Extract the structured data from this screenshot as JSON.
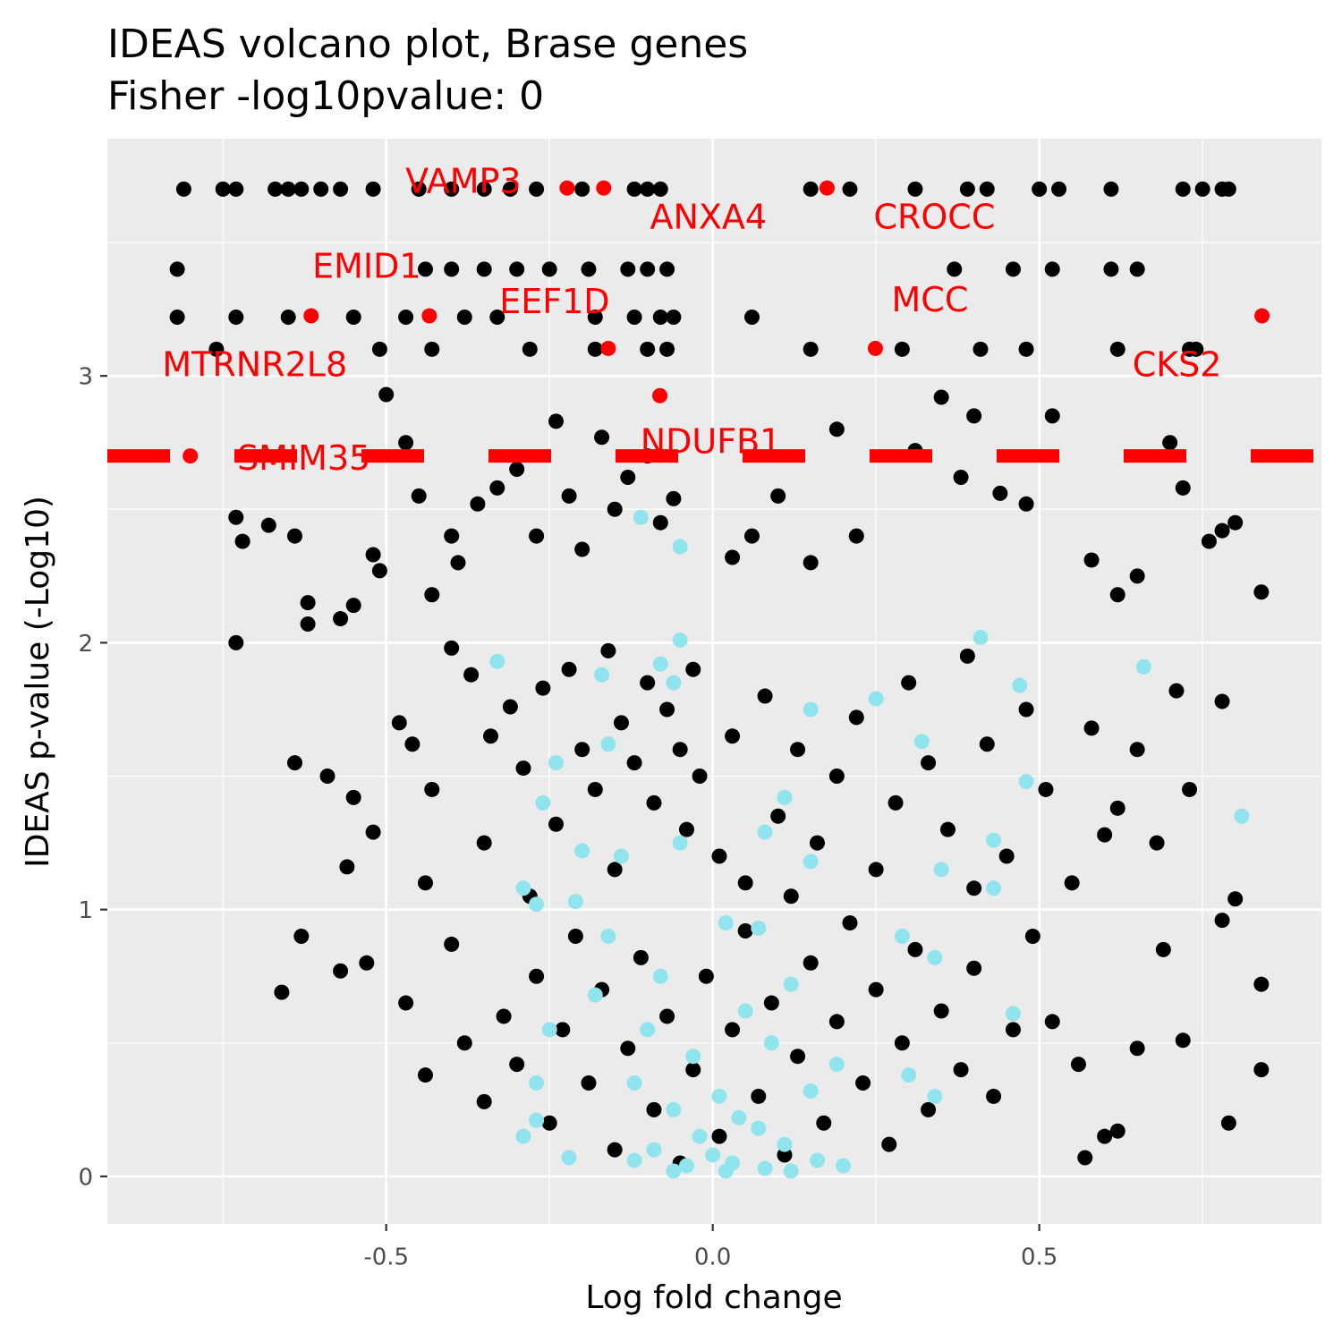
{
  "chart_data": {
    "type": "scatter",
    "title": "IDEAS volcano plot, Brase genes",
    "subtitle": "Fisher -log10pvalue: 0",
    "x_label": "Log fold change",
    "y_label": "IDEAS p-value (-Log10)",
    "xlim": [
      -0.927,
      0.932
    ],
    "ylim": [
      -0.178,
      3.889
    ],
    "xticks": [
      {
        "value": -0.5,
        "label": "-0.5"
      },
      {
        "value": 0,
        "label": "0.0"
      },
      {
        "value": 0.5,
        "label": "0.5"
      }
    ],
    "yticks": [
      0,
      1,
      2,
      3
    ],
    "x_minor_ticks": [
      -0.75,
      -0.25,
      0.25,
      0.75
    ],
    "y_minor_ticks": [
      0.5,
      1.5,
      2.5,
      3.5
    ],
    "grid": true,
    "background": "#ebebeb",
    "hline": {
      "value": 2.7,
      "color": "#ff0000"
    },
    "series": [
      {
        "color": "#000000",
        "x": [
          -0.81,
          -0.75,
          -0.73,
          -0.67,
          -0.65,
          -0.63,
          -0.6,
          -0.57,
          -0.52,
          -0.45,
          -0.4,
          -0.35,
          -0.31,
          -0.27,
          -0.2,
          -0.12,
          -0.1,
          -0.08,
          0.15,
          0.21,
          0.31,
          0.39,
          0.42,
          0.5,
          0.53,
          0.61,
          0.72,
          0.75,
          0.78,
          0.79,
          -0.82,
          -0.44,
          -0.4,
          -0.35,
          -0.3,
          -0.25,
          -0.19,
          -0.13,
          -0.1,
          -0.07,
          0.37,
          0.46,
          0.52,
          0.61,
          0.65,
          -0.82,
          -0.73,
          -0.65,
          -0.55,
          -0.47,
          -0.38,
          -0.33,
          -0.18,
          -0.12,
          -0.08,
          -0.06,
          0.06,
          -0.76,
          -0.51,
          -0.43,
          -0.28,
          -0.18,
          -0.1,
          -0.07,
          0.15,
          0.29,
          0.41,
          0.48,
          0.62,
          0.73,
          0.74,
          -0.73,
          -0.72,
          -0.68,
          -0.64,
          -0.62,
          -0.62,
          -0.57,
          -0.55,
          -0.52,
          -0.51,
          -0.5,
          -0.47,
          -0.45,
          -0.43,
          -0.4,
          -0.39,
          -0.36,
          -0.33,
          -0.3,
          -0.27,
          -0.24,
          -0.22,
          -0.2,
          -0.17,
          -0.15,
          -0.13,
          -0.1,
          -0.08,
          -0.06,
          0.03,
          0.06,
          0.1,
          0.15,
          0.19,
          0.22,
          0.31,
          0.35,
          0.38,
          0.4,
          0.44,
          0.48,
          0.52,
          0.58,
          0.62,
          0.65,
          0.76,
          0.78,
          0.8,
          0.84,
          0.7,
          0.72,
          -0.73,
          -0.64,
          -0.59,
          -0.55,
          -0.52,
          -0.48,
          -0.46,
          -0.43,
          -0.4,
          -0.37,
          -0.34,
          -0.31,
          -0.29,
          -0.26,
          -0.24,
          -0.22,
          -0.2,
          -0.18,
          -0.16,
          -0.14,
          -0.12,
          -0.1,
          -0.09,
          -0.07,
          -0.05,
          -0.04,
          -0.03,
          -0.02,
          0.01,
          0.03,
          0.05,
          0.08,
          0.1,
          0.13,
          0.16,
          0.19,
          0.22,
          0.25,
          0.28,
          0.3,
          0.33,
          0.36,
          0.39,
          0.42,
          0.45,
          0.48,
          0.51,
          0.55,
          0.58,
          0.62,
          0.65,
          0.68,
          0.71,
          0.73,
          0.78,
          -0.56,
          -0.44,
          -0.35,
          -0.28,
          -0.15,
          0.12,
          0.4,
          0.6,
          -0.66,
          -0.63,
          -0.57,
          -0.53,
          -0.47,
          -0.44,
          -0.4,
          -0.38,
          -0.35,
          -0.32,
          -0.3,
          -0.27,
          -0.25,
          -0.23,
          -0.21,
          -0.19,
          -0.17,
          -0.15,
          -0.13,
          -0.11,
          -0.09,
          -0.07,
          -0.05,
          -0.03,
          -0.01,
          0.01,
          0.03,
          0.05,
          0.07,
          0.09,
          0.11,
          0.13,
          0.15,
          0.17,
          0.19,
          0.21,
          0.23,
          0.25,
          0.27,
          0.29,
          0.31,
          0.33,
          0.35,
          0.38,
          0.4,
          0.43,
          0.46,
          0.49,
          0.52,
          0.56,
          0.6,
          0.62,
          0.65,
          0.69,
          0.72,
          0.78,
          0.79,
          0.84,
          0.84,
          0.8,
          0.57
        ],
        "values": [
          3.7,
          3.7,
          3.7,
          3.7,
          3.7,
          3.7,
          3.7,
          3.7,
          3.7,
          3.7,
          3.7,
          3.7,
          3.7,
          3.7,
          3.7,
          3.7,
          3.7,
          3.7,
          3.7,
          3.7,
          3.7,
          3.7,
          3.7,
          3.7,
          3.7,
          3.7,
          3.7,
          3.7,
          3.7,
          3.7,
          3.4,
          3.4,
          3.4,
          3.4,
          3.4,
          3.4,
          3.4,
          3.4,
          3.4,
          3.4,
          3.4,
          3.4,
          3.4,
          3.4,
          3.4,
          3.22,
          3.22,
          3.22,
          3.22,
          3.22,
          3.22,
          3.22,
          3.22,
          3.22,
          3.22,
          3.22,
          3.22,
          3.1,
          3.1,
          3.1,
          3.1,
          3.1,
          3.1,
          3.1,
          3.1,
          3.1,
          3.1,
          3.1,
          3.1,
          3.1,
          3.1,
          2.47,
          2.38,
          2.44,
          2.4,
          2.15,
          2.07,
          2.09,
          2.14,
          2.33,
          2.27,
          2.93,
          2.75,
          2.55,
          2.18,
          2.4,
          2.3,
          2.52,
          2.58,
          2.65,
          2.4,
          2.83,
          2.55,
          2.35,
          2.77,
          2.5,
          2.62,
          2.7,
          2.45,
          2.54,
          2.32,
          2.4,
          2.55,
          2.3,
          2.8,
          2.4,
          2.72,
          2.92,
          2.62,
          2.85,
          2.56,
          2.52,
          2.85,
          2.31,
          2.18,
          2.25,
          2.38,
          2.42,
          2.45,
          2.19,
          2.75,
          2.58,
          2.0,
          1.55,
          1.5,
          1.42,
          1.29,
          1.7,
          1.62,
          1.45,
          1.98,
          1.88,
          1.65,
          1.76,
          1.53,
          1.83,
          1.32,
          1.9,
          1.6,
          1.45,
          1.97,
          1.7,
          1.55,
          1.85,
          1.4,
          1.75,
          1.6,
          1.3,
          1.9,
          1.5,
          1.2,
          1.65,
          1.1,
          1.8,
          1.35,
          1.6,
          1.25,
          1.5,
          1.72,
          1.15,
          1.4,
          1.85,
          1.55,
          1.3,
          1.95,
          1.62,
          1.2,
          1.75,
          1.45,
          1.1,
          1.68,
          1.38,
          1.6,
          1.25,
          1.82,
          1.45,
          1.78,
          1.16,
          1.1,
          1.25,
          1.05,
          1.15,
          1.05,
          1.08,
          1.28,
          0.69,
          0.9,
          0.77,
          0.8,
          0.65,
          0.38,
          0.87,
          0.5,
          0.28,
          0.6,
          0.42,
          0.75,
          0.2,
          0.55,
          0.9,
          0.35,
          0.7,
          0.1,
          0.48,
          0.82,
          0.25,
          0.6,
          0.05,
          0.4,
          0.75,
          0.15,
          0.55,
          0.92,
          0.3,
          0.65,
          0.08,
          0.45,
          0.8,
          0.2,
          0.58,
          0.95,
          0.35,
          0.7,
          0.12,
          0.5,
          0.85,
          0.25,
          0.62,
          0.4,
          0.78,
          0.3,
          0.55,
          0.9,
          0.58,
          0.42,
          0.15,
          0.17,
          0.48,
          0.85,
          0.51,
          0.96,
          0.2,
          0.4,
          0.72,
          1.04,
          0.07
        ]
      },
      {
        "color": "#90e4ee",
        "x": [
          -0.33,
          -0.17,
          -0.08,
          -0.06,
          -0.05,
          -0.05,
          -0.11,
          0.41,
          0.66,
          0.47,
          0.25,
          0.15,
          0.32,
          -0.24,
          -0.16,
          0.48,
          0.11,
          -0.26,
          0.08,
          0.43,
          0.81,
          -0.2,
          -0.14,
          -0.05,
          0.15,
          0.35,
          -0.29,
          0.43,
          -0.27,
          -0.21,
          0.02,
          -0.16,
          0.07,
          -0.08,
          0.12,
          0.29,
          0.34,
          -0.18,
          0.05,
          -0.1,
          0.09,
          0.46,
          -0.25,
          -0.03,
          0.19,
          0.3,
          -0.12,
          0.01,
          0.15,
          -0.27,
          0.34,
          -0.06,
          0.04,
          -0.27,
          0.07,
          -0.02,
          0.11,
          -0.29,
          -0.09,
          0.0,
          0.03,
          -0.04,
          0.08,
          -0.22,
          0.16,
          -0.06,
          0.02,
          0.12,
          -0.12,
          0.2
        ],
        "values": [
          1.93,
          1.88,
          1.92,
          1.85,
          2.01,
          2.36,
          2.47,
          2.02,
          1.91,
          1.84,
          1.79,
          1.75,
          1.63,
          1.55,
          1.62,
          1.48,
          1.42,
          1.4,
          1.29,
          1.26,
          1.35,
          1.22,
          1.2,
          1.25,
          1.18,
          1.15,
          1.08,
          1.08,
          1.02,
          1.03,
          0.95,
          0.9,
          0.93,
          0.75,
          0.72,
          0.9,
          0.82,
          0.68,
          0.62,
          0.55,
          0.5,
          0.61,
          0.55,
          0.45,
          0.42,
          0.38,
          0.35,
          0.3,
          0.32,
          0.35,
          0.3,
          0.25,
          0.22,
          0.21,
          0.18,
          0.15,
          0.12,
          0.15,
          0.1,
          0.08,
          0.05,
          0.04,
          0.03,
          0.07,
          0.06,
          0.02,
          0.02,
          0.02,
          0.06,
          0.04
        ]
      },
      {
        "color": "#ff0000",
        "x": [
          -0.223,
          -0.167,
          0.175,
          -0.434,
          -0.615,
          0.841,
          -0.16,
          0.249,
          -0.081,
          -0.8
        ],
        "values": [
          3.704,
          3.704,
          3.704,
          3.225,
          3.225,
          3.225,
          3.103,
          3.103,
          2.926,
          2.7
        ],
        "labels": [
          "VAMP3",
          "ANXA4",
          "CROCC",
          "EMID1",
          "MTRNR2L8",
          "CKS2",
          "EEF1D",
          "MCC",
          "NDUFB1",
          "SMIM35"
        ]
      }
    ]
  }
}
